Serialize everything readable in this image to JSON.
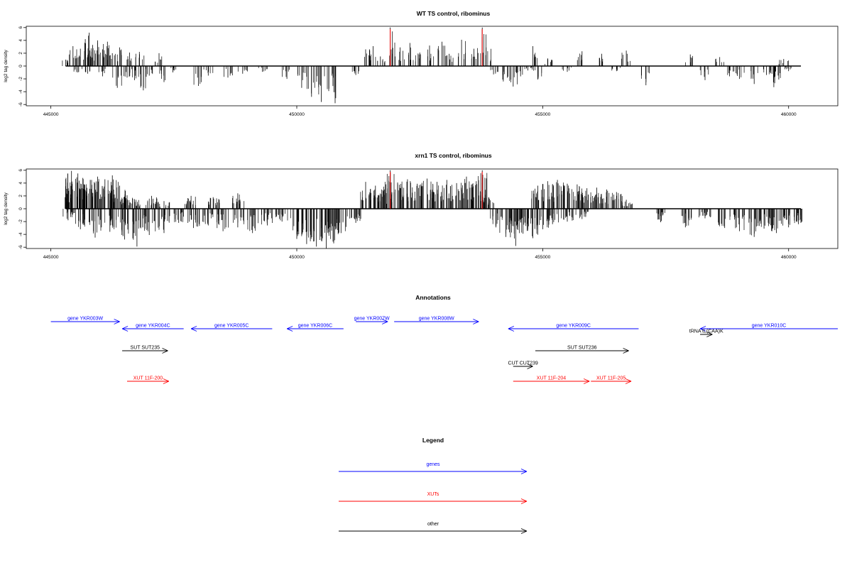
{
  "chart_data": [
    {
      "type": "bar",
      "title": "WT TS control, ribominus",
      "ylabel": "log2 tag density",
      "xlim": [
        444500,
        461000
      ],
      "ylim": [
        -6.2,
        6.2
      ],
      "x_ticks": [
        445000,
        450000,
        455000,
        460000
      ],
      "y_ticks": [
        -6,
        -4,
        -2,
        0,
        2,
        4,
        6
      ],
      "x_tick_labels": [
        "445000",
        "450000",
        "455000",
        "460000"
      ],
      "y_tick_labels": [
        "-6",
        "-4",
        "-2",
        "0",
        "2",
        "4",
        "6"
      ],
      "genomic_range": [
        445300,
        460250
      ],
      "grid": false,
      "red_markers": [
        451900,
        453770
      ],
      "bars": [
        [
          445300,
          1.0
        ],
        [
          445450,
          3.1
        ],
        [
          445600,
          2.7
        ],
        [
          445700,
          4.2
        ],
        [
          445780,
          5.2
        ],
        [
          445850,
          3.3
        ],
        [
          445950,
          4.0
        ],
        [
          446050,
          2.6
        ],
        [
          446150,
          3.8
        ],
        [
          446250,
          2.0
        ],
        [
          446400,
          2.9
        ],
        [
          446600,
          2.1
        ],
        [
          446800,
          2.2
        ],
        [
          447200,
          2.0
        ],
        [
          445550,
          -1.0
        ],
        [
          445750,
          -1.2
        ],
        [
          446050,
          -1.6
        ],
        [
          446350,
          -3.4
        ],
        [
          446550,
          -1.8
        ],
        [
          446700,
          -2.2
        ],
        [
          446880,
          -3.8
        ],
        [
          447000,
          -1.5
        ],
        [
          447300,
          -2.5
        ],
        [
          447480,
          -1.0
        ],
        [
          448000,
          -3.1
        ],
        [
          448200,
          -1.5
        ],
        [
          448600,
          -1.8
        ],
        [
          448900,
          -1.2
        ],
        [
          449300,
          -0.9
        ],
        [
          449800,
          -2.0
        ],
        [
          450100,
          -3.4
        ],
        [
          450300,
          -4.8
        ],
        [
          450500,
          -5.6
        ],
        [
          450650,
          -3.9
        ],
        [
          450780,
          -5.8
        ],
        [
          451200,
          -1.4
        ],
        [
          451400,
          2.6
        ],
        [
          451550,
          3.1
        ],
        [
          451700,
          1.5
        ],
        [
          451900,
          6.0
        ],
        [
          452100,
          2.9
        ],
        [
          452300,
          3.6
        ],
        [
          452500,
          2.1
        ],
        [
          452700,
          3.2
        ],
        [
          452950,
          3.8
        ],
        [
          453100,
          1.9
        ],
        [
          453350,
          4.1
        ],
        [
          453600,
          2.7
        ],
        [
          453770,
          6.0
        ],
        [
          453850,
          2.9
        ],
        [
          454000,
          -1.3
        ],
        [
          454200,
          -2.4
        ],
        [
          454400,
          -3.2
        ],
        [
          454550,
          -1.6
        ],
        [
          454700,
          -0.7
        ],
        [
          454900,
          -2.1
        ],
        [
          454800,
          3.1
        ],
        [
          455100,
          1.2
        ],
        [
          455500,
          -0.9
        ],
        [
          455800,
          2.3
        ],
        [
          456200,
          1.9
        ],
        [
          456500,
          -0.8
        ],
        [
          456700,
          2.4
        ],
        [
          457100,
          -3.0
        ],
        [
          458000,
          1.8
        ],
        [
          458300,
          -2.2
        ],
        [
          458600,
          1.4
        ],
        [
          458800,
          -1.6
        ],
        [
          459000,
          -2.0
        ],
        [
          459300,
          -2.8
        ],
        [
          459550,
          -1.4
        ],
        [
          459700,
          -3.3
        ],
        [
          459800,
          -2.1
        ],
        [
          460000,
          -0.8
        ],
        [
          459900,
          1.1
        ]
      ]
    },
    {
      "type": "bar",
      "title": "xrn1 TS control, ribominus",
      "ylabel": "log2 tag density",
      "xlim": [
        444500,
        461000
      ],
      "ylim": [
        -6.2,
        6.2
      ],
      "x_ticks": [
        445000,
        450000,
        455000,
        460000
      ],
      "y_ticks": [
        -6,
        -4,
        -2,
        0,
        2,
        4,
        6
      ],
      "x_tick_labels": [
        "445000",
        "450000",
        "455000",
        "460000"
      ],
      "y_tick_labels": [
        "-6",
        "-4",
        "-2",
        "0",
        "2",
        "4",
        "6"
      ],
      "genomic_range": [
        445300,
        460250
      ],
      "grid": false,
      "red_markers": [
        451900,
        453770
      ],
      "bars": [
        [
          445300,
          3.5
        ],
        [
          445420,
          5.9
        ],
        [
          445550,
          5.5
        ],
        [
          445650,
          4.8
        ],
        [
          445800,
          4.5
        ],
        [
          445950,
          5.0
        ],
        [
          446100,
          4.6
        ],
        [
          446250,
          5.2
        ],
        [
          446400,
          3.6
        ],
        [
          446550,
          2.1
        ],
        [
          446700,
          1.5
        ],
        [
          447050,
          2.0
        ],
        [
          447300,
          1.2
        ],
        [
          447850,
          2.0
        ],
        [
          448300,
          1.8
        ],
        [
          448800,
          2.4
        ],
        [
          445350,
          -1.8
        ],
        [
          445600,
          -3.2
        ],
        [
          445900,
          -4.5
        ],
        [
          446200,
          -3.6
        ],
        [
          446500,
          -4.8
        ],
        [
          446750,
          -5.9
        ],
        [
          447000,
          -4.1
        ],
        [
          447300,
          -3.8
        ],
        [
          447600,
          -2.2
        ],
        [
          447900,
          -3.0
        ],
        [
          448200,
          -2.6
        ],
        [
          448500,
          -3.5
        ],
        [
          448800,
          -2.9
        ],
        [
          449100,
          -3.8
        ],
        [
          449400,
          -2.6
        ],
        [
          449700,
          -2.0
        ],
        [
          450000,
          -4.7
        ],
        [
          450200,
          -5.5
        ],
        [
          450400,
          -5.9
        ],
        [
          450600,
          -6.2
        ],
        [
          450750,
          -5.4
        ],
        [
          450900,
          -3.8
        ],
        [
          451200,
          -2.2
        ],
        [
          451400,
          4.2
        ],
        [
          451600,
          3.6
        ],
        [
          451750,
          2.9
        ],
        [
          451900,
          6.0
        ],
        [
          452050,
          4.1
        ],
        [
          452250,
          4.6
        ],
        [
          452450,
          3.9
        ],
        [
          452650,
          4.7
        ],
        [
          452850,
          4.2
        ],
        [
          453050,
          4.5
        ],
        [
          453250,
          4.0
        ],
        [
          453450,
          5.0
        ],
        [
          453650,
          4.3
        ],
        [
          453770,
          6.0
        ],
        [
          453900,
          1.8
        ],
        [
          454050,
          -2.9
        ],
        [
          454250,
          -4.4
        ],
        [
          454450,
          -5.8
        ],
        [
          454600,
          -3.9
        ],
        [
          454800,
          -4.6
        ],
        [
          455000,
          -3.2
        ],
        [
          455200,
          -2.4
        ],
        [
          455500,
          -2.0
        ],
        [
          455800,
          -1.6
        ],
        [
          454900,
          3.6
        ],
        [
          455100,
          4.3
        ],
        [
          455300,
          4.5
        ],
        [
          455500,
          3.9
        ],
        [
          455700,
          3.8
        ],
        [
          455900,
          3.2
        ],
        [
          456100,
          3.3
        ],
        [
          456300,
          3.0
        ],
        [
          456500,
          2.6
        ],
        [
          456700,
          1.4
        ],
        [
          457400,
          -2.1
        ],
        [
          457900,
          -2.9
        ],
        [
          458300,
          -1.5
        ],
        [
          458700,
          -3.0
        ],
        [
          459000,
          -3.5
        ],
        [
          459300,
          -4.4
        ],
        [
          459500,
          -3.1
        ],
        [
          459750,
          -3.8
        ],
        [
          460000,
          -2.9
        ],
        [
          460200,
          -2.4
        ]
      ]
    }
  ],
  "annotations": {
    "title": "Annotations",
    "features": [
      {
        "label": "gene YKR003W",
        "start": 445000,
        "end": 446400,
        "strand": "+",
        "track": 0,
        "color": "#0000ff"
      },
      {
        "label": "gene YKR004C",
        "start": 446450,
        "end": 447700,
        "strand": "-",
        "track": 1,
        "color": "#0000ff"
      },
      {
        "label": "gene YKR005C",
        "start": 447850,
        "end": 449500,
        "strand": "-",
        "track": 1,
        "color": "#0000ff"
      },
      {
        "label": "gene YKR006C",
        "start": 449800,
        "end": 450950,
        "strand": "-",
        "track": 1,
        "color": "#0000ff"
      },
      {
        "label": "gene YKR007W",
        "start": 451200,
        "end": 451850,
        "strand": "+",
        "track": 0,
        "color": "#0000ff"
      },
      {
        "label": "gene YKR008W",
        "start": 451980,
        "end": 453700,
        "strand": "+",
        "track": 0,
        "color": "#0000ff"
      },
      {
        "label": "gene YKR009C",
        "start": 454300,
        "end": 456950,
        "strand": "-",
        "track": 1,
        "color": "#0000ff"
      },
      {
        "label": "gene YKR010C",
        "start": 458200,
        "end": 461000,
        "strand": "-",
        "track": 1,
        "color": "#0000ff"
      },
      {
        "label": "tRNA tL(CAA)K",
        "start": 458200,
        "end": 458450,
        "strand": "+",
        "track": 2,
        "color": "#000000"
      },
      {
        "label": "SUT SUT235",
        "start": 446450,
        "end": 447380,
        "strand": "+",
        "track": 3,
        "color": "#000000"
      },
      {
        "label": "SUT SUT236",
        "start": 454850,
        "end": 456750,
        "strand": "+",
        "track": 3,
        "color": "#000000"
      },
      {
        "label": "CUT CUT239",
        "start": 454400,
        "end": 454800,
        "strand": "+",
        "track": 4,
        "color": "#000000"
      },
      {
        "label": "XUT 11F-200",
        "start": 446550,
        "end": 447400,
        "strand": "+",
        "track": 5,
        "color": "#ff0000"
      },
      {
        "label": "XUT 11F-204",
        "start": 454400,
        "end": 455950,
        "strand": "+",
        "track": 5,
        "color": "#ff0000"
      },
      {
        "label": "XUT 11F-205",
        "start": 455980,
        "end": 456800,
        "strand": "+",
        "track": 5,
        "color": "#ff0000"
      }
    ]
  },
  "legend": {
    "title": "Legend",
    "items": [
      {
        "label": "genes",
        "color": "#0000ff"
      },
      {
        "label": "XUTs",
        "color": "#ff0000"
      },
      {
        "label": "other",
        "color": "#000000"
      }
    ]
  }
}
